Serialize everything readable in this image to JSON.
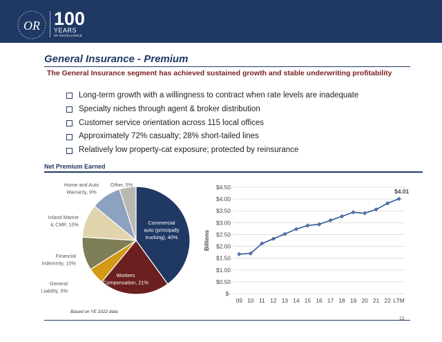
{
  "logo": {
    "number": "100",
    "line1": "YEARS",
    "line2": "OF EXCELLENCE",
    "monogram": "OR"
  },
  "title": "General Insurance - Premium",
  "subtitle": "The General Insurance segment has achieved sustained growth and stable underwriting profitability",
  "bullets": [
    "Long-term growth with a willingness to contract when rate levels are inadequate",
    "Specialty niches through agent & broker distribution",
    "Customer service orientation across 115 local offices",
    "Approximately 72% casualty; 28% short-tailed lines",
    "Relatively low property-cat exposure; protected by reinsurance"
  ],
  "section_label": "Net Premium Earned",
  "footnote": "Based on YE 2022 data",
  "page_number": "12",
  "colors": {
    "navy": "#1f3864",
    "maroon": "#7b1e1e"
  },
  "chart_data": [
    {
      "type": "pie",
      "slices": [
        {
          "label_lines": [
            "Commercial",
            "auto (principally",
            "trucking), 40%"
          ],
          "value": 40,
          "color": "#1f3864"
        },
        {
          "label_lines": [
            "Workers",
            "Compensation, 21%"
          ],
          "value": 21,
          "color": "#6b1f1f"
        },
        {
          "label_lines": [
            "General",
            "Liability, 5%"
          ],
          "value": 5,
          "color": "#d39a17"
        },
        {
          "label_lines": [
            "Financial",
            "Indemnity, 10%"
          ],
          "value": 10,
          "color": "#7e7e57"
        },
        {
          "label_lines": [
            "Inland Marine",
            "& CMP, 10%"
          ],
          "value": 10,
          "color": "#e1d3ac"
        },
        {
          "label_lines": [
            "Home and Auto",
            "Warranty, 9%"
          ],
          "value": 9,
          "color": "#8ea1bf"
        },
        {
          "label_lines": [
            "Other, 5%"
          ],
          "value": 5,
          "color": "#b9b9b3"
        }
      ]
    },
    {
      "type": "line",
      "x": [
        "09",
        "10",
        "11",
        "12",
        "13",
        "14",
        "15",
        "16",
        "17",
        "18",
        "19",
        "20",
        "21",
        "22",
        "LTM"
      ],
      "y": [
        1.67,
        1.7,
        2.12,
        2.32,
        2.52,
        2.73,
        2.88,
        2.93,
        3.1,
        3.27,
        3.44,
        3.4,
        3.56,
        3.82,
        4.01
      ],
      "ylabel": "Billions",
      "ylim": [
        0,
        4.5
      ],
      "yticks": [
        "$-",
        "$0.50",
        "$1.00",
        "$1.50",
        "$2.00",
        "$2.50",
        "$3.00",
        "$3.50",
        "$4.00",
        "$4.50"
      ],
      "end_label": "$4.01",
      "line_color": "#2e5597",
      "grid": true
    }
  ]
}
